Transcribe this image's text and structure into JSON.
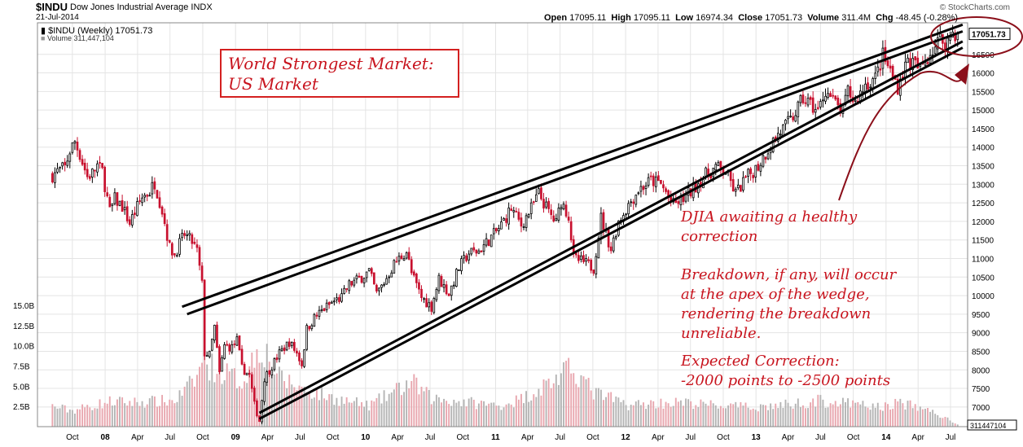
{
  "header": {
    "symbol": "$INDU",
    "name": "Dow Jones Industrial Average INDX",
    "date": "21-Jul-2014",
    "ohlc": {
      "open_label": "Open",
      "open": "17095.11",
      "high_label": "High",
      "high": "17095.11",
      "low_label": "Low",
      "low": "16974.34",
      "close_label": "Close",
      "close": "17051.73",
      "volume_label": "Volume",
      "volume": "311.4M",
      "chg_label": "Chg",
      "chg": "-48.45 (-0.28%)"
    },
    "legend_price": "$INDU (Weekly) 17051.73",
    "legend_volume": "Volume 311,447,104",
    "brand": "© StockCharts.com"
  },
  "annotations": {
    "title_line1": "World Strongest Market:",
    "title_line2": "US Market",
    "note1_line1": "DJIA awaiting a healthy",
    "note1_line2": "correction",
    "note2_line1": "Breakdown, if any, will occur",
    "note2_line2": "at the apex of the wedge,",
    "note2_line3": "rendering the breakdown",
    "note2_line4": "unreliable.",
    "note3_line1": "Expected Correction:",
    "note3_line2": "-2000 points to -2500 points"
  },
  "colors": {
    "up_candle": "#000000",
    "down_candle": "#c8102e",
    "volume_up": "#b4b4b4",
    "volume_down": "#e8a6ae",
    "annotation_red": "#c8141e",
    "gridline": "#e4e4e4"
  },
  "chart_data": {
    "type": "candlestick",
    "period": "weekly",
    "price_axis": {
      "side": "right",
      "ticks": [
        7000,
        7500,
        8000,
        8500,
        9000,
        9500,
        10000,
        10500,
        11000,
        11500,
        12000,
        12500,
        13000,
        13500,
        14000,
        14500,
        15000,
        15500,
        16000,
        16500
      ],
      "last_price_label": "17051.73",
      "range": [
        6470,
        17350
      ]
    },
    "volume_axis": {
      "side": "left",
      "ticks": [
        "2.5B",
        "5.0B",
        "7.5B",
        "10.0B",
        "12.5B",
        "15.0B"
      ],
      "tick_values": [
        2.5,
        5.0,
        7.5,
        10.0,
        12.5,
        15.0
      ],
      "unit": "B",
      "last_volume_label": "311447104"
    },
    "x_axis": {
      "ticks": [
        "Oct",
        "08",
        "Apr",
        "Jul",
        "Oct",
        "09",
        "Apr",
        "Jul",
        "Oct",
        "10",
        "Apr",
        "Jul",
        "Oct",
        "11",
        "Apr",
        "Jul",
        "Oct",
        "12",
        "Apr",
        "Jul",
        "Oct",
        "13",
        "Apr",
        "Jul",
        "Oct",
        "14",
        "Apr",
        "Jul"
      ],
      "tick_dates": [
        "2007-10-01",
        "2008-01-01",
        "2008-04-01",
        "2008-07-01",
        "2008-10-01",
        "2009-01-01",
        "2009-04-01",
        "2009-07-01",
        "2009-10-01",
        "2010-01-01",
        "2010-04-01",
        "2010-07-01",
        "2010-10-01",
        "2011-01-01",
        "2011-04-01",
        "2011-07-01",
        "2011-10-01",
        "2012-01-01",
        "2012-04-01",
        "2012-07-01",
        "2012-10-01",
        "2013-01-01",
        "2013-04-01",
        "2013-07-01",
        "2013-10-01",
        "2014-01-01",
        "2014-04-01",
        "2014-07-01"
      ]
    },
    "series": [
      {
        "name": "$INDU (Weekly)",
        "closes": [
          [
            "2007-08-06",
            13250
          ],
          [
            "2007-08-20",
            13350
          ],
          [
            "2007-09-10",
            13450
          ],
          [
            "2007-09-24",
            13900
          ],
          [
            "2007-10-08",
            14150
          ],
          [
            "2007-10-22",
            13800
          ],
          [
            "2007-11-12",
            13200
          ],
          [
            "2007-11-26",
            13300
          ],
          [
            "2007-12-10",
            13500
          ],
          [
            "2007-12-24",
            13350
          ],
          [
            "2008-01-14",
            12250
          ],
          [
            "2008-01-28",
            12600
          ],
          [
            "2008-02-18",
            12400
          ],
          [
            "2008-03-10",
            11950
          ],
          [
            "2008-03-24",
            12250
          ],
          [
            "2008-04-14",
            12650
          ],
          [
            "2008-05-05",
            12800
          ],
          [
            "2008-05-19",
            13050
          ],
          [
            "2008-06-09",
            12300
          ],
          [
            "2008-06-30",
            11300
          ],
          [
            "2008-07-14",
            11100
          ],
          [
            "2008-07-28",
            11400
          ],
          [
            "2008-08-11",
            11650
          ],
          [
            "2008-09-01",
            11450
          ],
          [
            "2008-09-15",
            11200
          ],
          [
            "2008-09-29",
            10300
          ],
          [
            "2008-10-06",
            8450
          ],
          [
            "2008-10-20",
            8400
          ],
          [
            "2008-11-03",
            9150
          ],
          [
            "2008-11-17",
            7900
          ],
          [
            "2008-12-01",
            8650
          ],
          [
            "2008-12-22",
            8600
          ],
          [
            "2009-01-05",
            8800
          ],
          [
            "2009-01-19",
            8050
          ],
          [
            "2009-02-09",
            7850
          ],
          [
            "2009-02-23",
            7060
          ],
          [
            "2009-03-09",
            6630
          ],
          [
            "2009-03-23",
            7780
          ],
          [
            "2009-04-13",
            8100
          ],
          [
            "2009-05-04",
            8450
          ],
          [
            "2009-06-01",
            8750
          ],
          [
            "2009-06-22",
            8450
          ],
          [
            "2009-07-06",
            8150
          ],
          [
            "2009-07-20",
            9100
          ],
          [
            "2009-08-10",
            9400
          ],
          [
            "2009-09-07",
            9650
          ],
          [
            "2009-10-05",
            9850
          ],
          [
            "2009-10-26",
            9950
          ],
          [
            "2009-11-16",
            10300
          ],
          [
            "2009-12-14",
            10450
          ],
          [
            "2010-01-11",
            10650
          ],
          [
            "2010-02-01",
            10050
          ],
          [
            "2010-02-22",
            10350
          ],
          [
            "2010-03-22",
            10850
          ],
          [
            "2010-04-26",
            11200
          ],
          [
            "2010-05-10",
            10600
          ],
          [
            "2010-06-07",
            9950
          ],
          [
            "2010-07-05",
            9700
          ],
          [
            "2010-07-26",
            10450
          ],
          [
            "2010-08-23",
            10050
          ],
          [
            "2010-09-20",
            10750
          ],
          [
            "2010-10-18",
            11150
          ],
          [
            "2010-11-15",
            11200
          ],
          [
            "2010-12-13",
            11500
          ],
          [
            "2011-01-10",
            11800
          ],
          [
            "2011-02-14",
            12350
          ],
          [
            "2011-03-14",
            11900
          ],
          [
            "2011-04-11",
            12350
          ],
          [
            "2011-05-02",
            12750
          ],
          [
            "2011-05-30",
            12250
          ],
          [
            "2011-06-20",
            11950
          ],
          [
            "2011-07-04",
            12550
          ],
          [
            "2011-07-25",
            12150
          ],
          [
            "2011-08-08",
            11000
          ],
          [
            "2011-09-05",
            10900
          ],
          [
            "2011-10-03",
            10750
          ],
          [
            "2011-10-24",
            12100
          ],
          [
            "2011-11-21",
            11250
          ],
          [
            "2011-12-12",
            12000
          ],
          [
            "2012-01-09",
            12450
          ],
          [
            "2012-02-06",
            12850
          ],
          [
            "2012-03-12",
            13100
          ],
          [
            "2012-04-09",
            13000
          ],
          [
            "2012-05-14",
            12450
          ],
          [
            "2012-06-04",
            12550
          ],
          [
            "2012-07-02",
            12800
          ],
          [
            "2012-08-06",
            13200
          ],
          [
            "2012-09-10",
            13450
          ],
          [
            "2012-10-08",
            13350
          ],
          [
            "2012-11-05",
            12750
          ],
          [
            "2012-12-03",
            13150
          ],
          [
            "2013-01-07",
            13500
          ],
          [
            "2013-02-04",
            13950
          ],
          [
            "2013-03-04",
            14350
          ],
          [
            "2013-04-08",
            14700
          ],
          [
            "2013-05-13",
            15300
          ],
          [
            "2013-06-03",
            15150
          ],
          [
            "2013-06-24",
            14950
          ],
          [
            "2013-07-15",
            15550
          ],
          [
            "2013-08-12",
            15150
          ],
          [
            "2013-09-02",
            14950
          ],
          [
            "2013-09-16",
            15500
          ],
          [
            "2013-10-07",
            15200
          ],
          [
            "2013-11-04",
            15700
          ],
          [
            "2013-12-02",
            15850
          ],
          [
            "2013-12-23",
            16450
          ],
          [
            "2014-01-20",
            15900
          ],
          [
            "2014-02-03",
            15650
          ],
          [
            "2014-03-03",
            16350
          ],
          [
            "2014-04-07",
            16100
          ],
          [
            "2014-05-05",
            16550
          ],
          [
            "2014-06-02",
            16900
          ],
          [
            "2014-06-23",
            16850
          ],
          [
            "2014-07-07",
            17100
          ],
          [
            "2014-07-21",
            17051.73
          ]
        ]
      },
      {
        "name": "Volume",
        "unit": "B",
        "values": [
          [
            "2007-08-06",
            2.5
          ],
          [
            "2007-10-01",
            2.0
          ],
          [
            "2008-01-14",
            3.1
          ],
          [
            "2008-03-10",
            3.0
          ],
          [
            "2008-07-14",
            3.2
          ],
          [
            "2008-09-15",
            6.0
          ],
          [
            "2008-10-06",
            9.5
          ],
          [
            "2008-10-20",
            7.5
          ],
          [
            "2008-11-17",
            7.0
          ],
          [
            "2009-01-19",
            5.5
          ],
          [
            "2009-03-09",
            10.0
          ],
          [
            "2009-03-23",
            9.5
          ],
          [
            "2009-05-04",
            6.0
          ],
          [
            "2009-07-20",
            4.5
          ],
          [
            "2009-10-05",
            3.5
          ],
          [
            "2010-01-11",
            2.6
          ],
          [
            "2010-05-10",
            5.5
          ],
          [
            "2010-07-05",
            3.5
          ],
          [
            "2011-01-10",
            2.6
          ],
          [
            "2011-03-14",
            3.4
          ],
          [
            "2011-08-08",
            7.2
          ],
          [
            "2011-10-03",
            4.2
          ],
          [
            "2012-01-09",
            2.7
          ],
          [
            "2012-05-14",
            3.0
          ],
          [
            "2012-12-03",
            2.4
          ],
          [
            "2013-03-04",
            2.6
          ],
          [
            "2013-06-24",
            3.2
          ],
          [
            "2013-12-23",
            2.4
          ],
          [
            "2014-02-03",
            3.0
          ],
          [
            "2014-05-05",
            2.0
          ],
          [
            "2014-07-21",
            0.3
          ]
        ]
      }
    ],
    "trendlines": [
      {
        "name": "wedge-upper-outer",
        "from": [
          "2008-08-04",
          9700
        ],
        "to": [
          "2014-08-04",
          17300
        ]
      },
      {
        "name": "wedge-upper-inner",
        "from": [
          "2008-08-18",
          9500
        ],
        "to": [
          "2014-08-04",
          17120
        ]
      },
      {
        "name": "wedge-lower-outer",
        "from": [
          "2009-03-09",
          6840
        ],
        "to": [
          "2014-08-04",
          16850
        ]
      },
      {
        "name": "wedge-lower-inner",
        "from": [
          "2009-03-09",
          6680
        ],
        "to": [
          "2014-08-04",
          16680
        ]
      }
    ],
    "grid": true,
    "legend_position": "top-left"
  }
}
